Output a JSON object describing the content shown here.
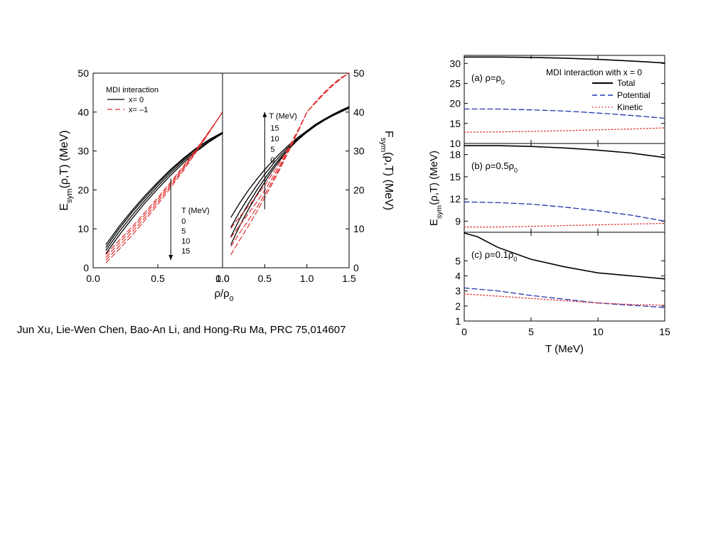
{
  "caption": "Jun Xu, Lie-Wen Chen, Bao-An Li, and Hong-Ru Ma, PRC 75,014607",
  "chart_data": [
    {
      "type": "line",
      "panel": "left",
      "ylabel_left": "E_sym(ρ,T) (MeV)",
      "ylabel_right": "F_sym(ρ,T) (MeV)",
      "xlabel": "ρ/ρ0",
      "subplots": [
        {
          "xlim": [
            0.0,
            1.0
          ],
          "xticks": [
            "0.0",
            "0.5",
            "1.0"
          ],
          "ylim": [
            0,
            50
          ],
          "yticks": [
            "0",
            "10",
            "20",
            "30",
            "40",
            "50"
          ],
          "legend_title": "MDI interaction",
          "legend": [
            {
              "label": "x=   0",
              "color": "#000000",
              "dash": "solid"
            },
            {
              "label": "x= –1",
              "color": "#e03030",
              "dash": "dashed"
            }
          ],
          "annotation": {
            "title": "T (MeV)",
            "items": [
              "0",
              "5",
              "10",
              "15"
            ],
            "arrow": "down",
            "arrow_x": 0.6,
            "arrow_from": 23,
            "arrow_to": 2
          },
          "series": [
            {
              "name": "",
              "x": [
                0.1,
                0.2,
                0.3,
                0.4,
                0.5,
                0.6,
                0.7,
                0.8,
                0.9,
                1.0
              ],
              "y": [
                6.0,
                10.6,
                14.7,
                18.5,
                22.0,
                25.3,
                28.2,
                30.8,
                33.0,
                34.8
              ]
            },
            {
              "name": "",
              "x": [
                0.1,
                0.2,
                0.3,
                0.4,
                0.5,
                0.6,
                0.7,
                0.8,
                0.9,
                1.0
              ],
              "y": [
                5.3,
                10.0,
                14.2,
                18.0,
                21.6,
                24.9,
                27.9,
                30.6,
                32.9,
                34.7
              ]
            },
            {
              "name": "",
              "x": [
                0.1,
                0.2,
                0.3,
                0.4,
                0.5,
                0.6,
                0.7,
                0.8,
                0.9,
                1.0
              ],
              "y": [
                4.5,
                9.2,
                13.4,
                17.3,
                21.0,
                24.4,
                27.5,
                30.2,
                32.6,
                34.6
              ]
            },
            {
              "name": "",
              "x": [
                0.1,
                0.2,
                0.3,
                0.4,
                0.5,
                0.6,
                0.7,
                0.8,
                0.9,
                1.0
              ],
              "y": [
                3.7,
                8.3,
                12.6,
                16.6,
                20.3,
                23.8,
                27.0,
                29.9,
                32.4,
                34.5
              ]
            },
            {
              "name": "",
              "x": [
                0.1,
                0.2,
                0.3,
                0.4,
                0.5,
                0.6,
                0.7,
                0.8,
                0.9,
                1.0
              ],
              "y": [
                3.4,
                7.0,
                10.5,
                14.2,
                18.0,
                22.0,
                26.2,
                30.6,
                35.2,
                40.0
              ]
            },
            {
              "name": "",
              "x": [
                0.1,
                0.2,
                0.3,
                0.4,
                0.5,
                0.6,
                0.7,
                0.8,
                0.9,
                1.0
              ],
              "y": [
                2.7,
                6.3,
                9.9,
                13.6,
                17.5,
                21.6,
                25.9,
                30.4,
                35.1,
                40.0
              ]
            },
            {
              "name": "",
              "x": [
                0.1,
                0.2,
                0.3,
                0.4,
                0.5,
                0.6,
                0.7,
                0.8,
                0.9,
                1.0
              ],
              "y": [
                2.0,
                5.5,
                9.1,
                12.9,
                16.9,
                21.1,
                25.5,
                30.1,
                35.0,
                40.0
              ]
            },
            {
              "name": "",
              "x": [
                0.1,
                0.2,
                0.3,
                0.4,
                0.5,
                0.6,
                0.7,
                0.8,
                0.9,
                1.0
              ],
              "y": [
                1.3,
                4.7,
                8.3,
                12.2,
                16.3,
                20.6,
                25.1,
                29.9,
                34.9,
                40.0
              ]
            }
          ]
        },
        {
          "xlim": [
            0.0,
            1.5
          ],
          "xticks": [
            "0.0",
            "0.5",
            "1.0",
            "1.5"
          ],
          "ylim": [
            0,
            50
          ],
          "yticks": [
            "0",
            "10",
            "20",
            "30",
            "40",
            "50"
          ],
          "annotation": {
            "title": "T (MeV)",
            "items": [
              "15",
              "10",
              "5",
              "0"
            ],
            "arrow": "up",
            "arrow_x": 0.5,
            "arrow_from": 15,
            "arrow_to": 40
          },
          "series": [
            {
              "name": "",
              "x": [
                0.1,
                0.2,
                0.3,
                0.4,
                0.5,
                0.6,
                0.7,
                0.8,
                0.9,
                1.0,
                1.1,
                1.2,
                1.3,
                1.4,
                1.5
              ],
              "y": [
                6.0,
                10.6,
                14.7,
                18.5,
                22.0,
                25.3,
                28.2,
                30.8,
                33.0,
                34.8,
                36.4,
                37.8,
                39.0,
                40.0,
                41.0
              ]
            },
            {
              "name": "",
              "x": [
                0.1,
                0.2,
                0.3,
                0.4,
                0.5,
                0.6,
                0.7,
                0.8,
                0.9,
                1.0,
                1.1,
                1.2,
                1.3,
                1.4,
                1.5
              ],
              "y": [
                8.0,
                12.4,
                16.2,
                19.7,
                22.9,
                25.9,
                28.6,
                31.0,
                33.1,
                34.9,
                36.5,
                37.9,
                39.1,
                40.1,
                41.1
              ]
            },
            {
              "name": "",
              "x": [
                0.1,
                0.2,
                0.3,
                0.4,
                0.5,
                0.6,
                0.7,
                0.8,
                0.9,
                1.0,
                1.1,
                1.2,
                1.3,
                1.4,
                1.5
              ],
              "y": [
                10.4,
                14.3,
                17.8,
                21.0,
                24.0,
                26.7,
                29.2,
                31.4,
                33.4,
                35.1,
                36.7,
                38.0,
                39.2,
                40.2,
                41.2
              ]
            },
            {
              "name": "",
              "x": [
                0.1,
                0.2,
                0.3,
                0.4,
                0.5,
                0.6,
                0.7,
                0.8,
                0.9,
                1.0,
                1.1,
                1.2,
                1.3,
                1.4,
                1.5
              ],
              "y": [
                13.0,
                16.5,
                19.7,
                22.6,
                25.2,
                27.6,
                29.8,
                31.8,
                33.6,
                35.2,
                36.8,
                38.1,
                39.3,
                40.4,
                41.4
              ]
            },
            {
              "name": "",
              "x": [
                0.1,
                0.2,
                0.3,
                0.4,
                0.5,
                0.6,
                0.7,
                0.8,
                0.9,
                1.0,
                1.1,
                1.2,
                1.3,
                1.4,
                1.5
              ],
              "y": [
                3.4,
                7.0,
                10.5,
                14.2,
                18.0,
                22.0,
                26.2,
                30.6,
                35.2,
                40.0,
                42.3,
                44.6,
                46.7,
                48.5,
                50.0
              ]
            },
            {
              "name": "",
              "x": [
                0.1,
                0.2,
                0.3,
                0.4,
                0.5,
                0.6,
                0.7,
                0.8,
                0.9,
                1.0,
                1.1,
                1.2,
                1.3,
                1.4,
                1.5
              ],
              "y": [
                5.5,
                8.8,
                12.0,
                15.3,
                18.8,
                22.6,
                26.6,
                30.8,
                35.3,
                40.0,
                42.4,
                44.7,
                46.8,
                48.6,
                50.0
              ]
            },
            {
              "name": "",
              "x": [
                0.1,
                0.2,
                0.3,
                0.4,
                0.5,
                0.6,
                0.7,
                0.8,
                0.9,
                1.0,
                1.1,
                1.2,
                1.3,
                1.4,
                1.5
              ],
              "y": [
                7.8,
                10.8,
                13.7,
                16.7,
                19.9,
                23.4,
                27.1,
                31.1,
                35.4,
                40.0,
                42.5,
                44.8,
                46.9,
                48.7,
                50.0
              ]
            },
            {
              "name": "",
              "x": [
                0.1,
                0.2,
                0.3,
                0.4,
                0.5,
                0.6,
                0.7,
                0.8,
                0.9,
                1.0,
                1.1,
                1.2,
                1.3,
                1.4,
                1.5
              ],
              "y": [
                10.2,
                13.0,
                15.6,
                18.3,
                21.2,
                24.4,
                27.8,
                31.5,
                35.6,
                40.0,
                42.6,
                44.9,
                47.0,
                48.8,
                50.0
              ]
            }
          ]
        }
      ]
    },
    {
      "type": "line",
      "panel": "right",
      "ylabel": "E_sym(ρ,T) (MeV)",
      "xlabel": "T (MeV)",
      "xlim": [
        0,
        15
      ],
      "xticks": [
        "0",
        "5",
        "10",
        "15"
      ],
      "legend_title": "MDI interaction with x = 0",
      "legend": [
        {
          "label": "Total",
          "color": "#000000",
          "dash": "solid"
        },
        {
          "label": "Potential",
          "color": "#2233aa",
          "dash": "dashed"
        },
        {
          "label": "Kinetic",
          "color": "#e03030",
          "dash": "dotted"
        }
      ],
      "subplots": [
        {
          "label": "(a) ρ=ρ0",
          "ylim": [
            10,
            32
          ],
          "yticks": [
            "10",
            "15",
            "20",
            "25",
            "30"
          ],
          "series": [
            {
              "name": "Total",
              "x": [
                0,
                2.5,
                5,
                7.5,
                10,
                12.5,
                15
              ],
              "y": [
                31.6,
                31.6,
                31.5,
                31.3,
                31.0,
                30.6,
                30.1
              ]
            },
            {
              "name": "Potential",
              "x": [
                0,
                2.5,
                5,
                7.5,
                10,
                12.5,
                15
              ],
              "y": [
                18.6,
                18.6,
                18.4,
                18.1,
                17.6,
                17.0,
                16.3
              ]
            },
            {
              "name": "Kinetic",
              "x": [
                0,
                2.5,
                5,
                7.5,
                10,
                12.5,
                15
              ],
              "y": [
                12.8,
                12.9,
                13.0,
                13.2,
                13.4,
                13.6,
                13.9
              ]
            }
          ]
        },
        {
          "label": "(b) ρ=0.5ρ0",
          "ylim": [
            7.5,
            19.5
          ],
          "yticks": [
            "9",
            "12",
            "15",
            "18"
          ],
          "series": [
            {
              "name": "Total",
              "x": [
                0,
                2.5,
                5,
                7.5,
                10,
                12.5,
                15
              ],
              "y": [
                19.2,
                19.2,
                19.1,
                18.9,
                18.6,
                18.2,
                17.6
              ]
            },
            {
              "name": "Potential",
              "x": [
                0,
                2.5,
                5,
                7.5,
                10,
                12.5,
                15
              ],
              "y": [
                11.6,
                11.5,
                11.3,
                10.9,
                10.4,
                9.8,
                9.0
              ]
            },
            {
              "name": "Kinetic",
              "x": [
                0,
                2.5,
                5,
                7.5,
                10,
                12.5,
                15
              ],
              "y": [
                8.2,
                8.2,
                8.3,
                8.4,
                8.5,
                8.6,
                8.7
              ]
            }
          ]
        },
        {
          "label": "(c) ρ=0.1ρ0",
          "ylim": [
            1,
            6.9
          ],
          "yticks": [
            "1",
            "2",
            "3",
            "4",
            "5"
          ],
          "series": [
            {
              "name": "Total",
              "x": [
                0,
                1,
                2.5,
                5,
                7.5,
                10,
                12.5,
                15
              ],
              "y": [
                6.85,
                6.6,
                5.9,
                5.1,
                4.6,
                4.2,
                4.0,
                3.8
              ]
            },
            {
              "name": "Potential",
              "x": [
                0,
                2.5,
                5,
                7.5,
                10,
                12.5,
                15
              ],
              "y": [
                3.2,
                3.0,
                2.7,
                2.45,
                2.2,
                2.05,
                1.9
              ]
            },
            {
              "name": "Kinetic",
              "x": [
                0,
                2.5,
                5,
                7.5,
                10,
                12.5,
                15
              ],
              "y": [
                2.8,
                2.65,
                2.5,
                2.35,
                2.2,
                2.1,
                2.05
              ]
            }
          ]
        }
      ]
    }
  ]
}
